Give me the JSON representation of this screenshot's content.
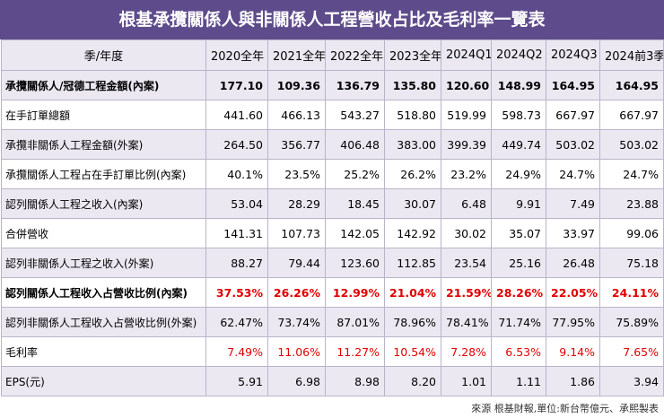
{
  "title": "根基承攬關係人與非關係人工程營收占比及毛利率一覽表",
  "table": {
    "columns": [
      "季/年度",
      "2020全年",
      "2021全年",
      "2022全年",
      "2023全年",
      "2024Q1",
      "2024Q2",
      "2024Q3",
      "2024前3季"
    ],
    "rows": [
      [
        "承攬關係人/冠德工程金額(內案)",
        "177.10",
        "109.36",
        "136.79",
        "135.80",
        "120.60",
        "148.99",
        "164.95",
        "164.95"
      ],
      [
        "在手訂單總額",
        "441.60",
        "466.13",
        "543.27",
        "518.80",
        "519.99",
        "598.73",
        "667.97",
        "667.97"
      ],
      [
        "承攬非關係人工程金額(外案)",
        "264.50",
        "356.77",
        "406.48",
        "383.00",
        "399.39",
        "449.74",
        "503.02",
        "503.02"
      ],
      [
        "承攬關係人工程占在手訂單比例(內案)",
        "40.1%",
        "23.5%",
        "25.2%",
        "26.2%",
        "23.2%",
        "24.9%",
        "24.7%",
        "24.7%"
      ],
      [
        "認列關係人工程之收入(內案)",
        "53.04",
        "28.29",
        "18.45",
        "30.07",
        "6.48",
        "9.91",
        "7.49",
        "23.88"
      ],
      [
        "合併營收",
        "141.31",
        "107.73",
        "142.05",
        "142.92",
        "30.02",
        "35.07",
        "33.97",
        "99.06"
      ],
      [
        "認列非關係人工程之收入(外案)",
        "88.27",
        "79.44",
        "123.60",
        "112.85",
        "23.54",
        "25.16",
        "26.48",
        "75.18"
      ],
      [
        "認列關係人工程收入占營收比例(內案)",
        "37.53%",
        "26.26%",
        "12.99%",
        "21.04%",
        "21.59%",
        "28.26%",
        "22.05%",
        "24.11%"
      ],
      [
        "認列非關係人工程收入占營收比例(外案)",
        "62.47%",
        "73.74%",
        "87.01%",
        "78.96%",
        "78.41%",
        "71.74%",
        "77.95%",
        "75.89%"
      ],
      [
        "毛利率",
        "7.49%",
        "11.06%",
        "11.27%",
        "10.54%",
        "7.28%",
        "6.53%",
        "9.14%",
        "7.65%"
      ],
      [
        "EPS(元)",
        "5.91",
        "6.98",
        "8.98",
        "8.20",
        "1.01",
        "1.11",
        "1.86",
        "3.94"
      ]
    ]
  },
  "source": "來源 根基財報,單位:新台幣億元、承熙製表"
}
